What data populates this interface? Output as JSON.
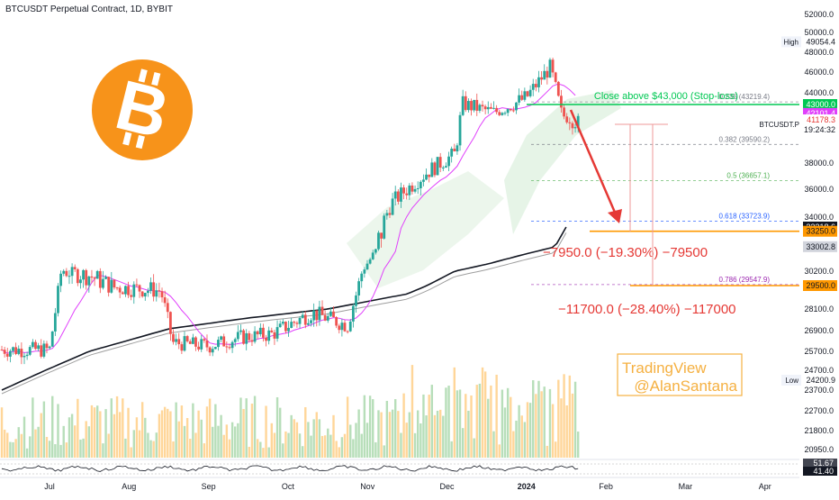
{
  "header": {
    "title": "BTCUSDT Perpetual Contract, 1D, BYBIT"
  },
  "chart_data": {
    "type": "candlestick",
    "symbol": "BTCUSDT.P",
    "ylim": [
      20000,
      53000
    ],
    "y_ticks": [
      {
        "value": 52000,
        "label": "52000.0"
      },
      {
        "value": 50000,
        "label": "50000.0"
      },
      {
        "value": 48000,
        "label": "48000.0"
      },
      {
        "value": 46000,
        "label": "46000.0"
      },
      {
        "value": 44000,
        "label": "44000.0"
      },
      {
        "value": 38000,
        "label": "38000.0"
      },
      {
        "value": 36000,
        "label": "36000.0"
      },
      {
        "value": 34000,
        "label": "34000.0"
      },
      {
        "value": 30200,
        "label": "30200.0"
      },
      {
        "value": 28100,
        "label": "28100.0"
      },
      {
        "value": 26900,
        "label": "26900.0"
      },
      {
        "value": 25700,
        "label": "25700.0"
      },
      {
        "value": 24700,
        "label": "24700.0"
      },
      {
        "value": 23700,
        "label": "23700.0"
      },
      {
        "value": 22700,
        "label": "22700.0"
      },
      {
        "value": 21800,
        "label": "21800.0"
      },
      {
        "value": 20950,
        "label": "20950.0"
      }
    ],
    "x_ticks": [
      {
        "label": "Jul",
        "month": 0
      },
      {
        "label": "Aug",
        "month": 1
      },
      {
        "label": "Sep",
        "month": 2
      },
      {
        "label": "Oct",
        "month": 3
      },
      {
        "label": "Nov",
        "month": 4
      },
      {
        "label": "Dec",
        "month": 5
      },
      {
        "label": "2024",
        "month": 6
      },
      {
        "label": "Feb",
        "month": 7
      },
      {
        "label": "Mar",
        "month": 8
      },
      {
        "label": "Apr",
        "month": 9
      }
    ],
    "price_tags": [
      {
        "value": 49054.4,
        "label": "49054.4",
        "tag": "High",
        "style": "plain"
      },
      {
        "value": 43000.0,
        "label": "43000.0",
        "style": "green"
      },
      {
        "value": 42101.4,
        "label": "42101.4",
        "style": "pink"
      },
      {
        "value": 41178.3,
        "label": "41178.3",
        "sub": "19:24:32",
        "symbol": "BTCUSDT.P",
        "style": "current"
      },
      {
        "value": 33318.6,
        "label": "33318.6",
        "style": "black"
      },
      {
        "value": 33250.0,
        "label": "33250.0",
        "style": "orange"
      },
      {
        "value": 33002.8,
        "label": "33002.8",
        "style": "gray"
      },
      {
        "value": 29500.0,
        "label": "29500.0",
        "style": "orange"
      },
      {
        "value": 24200.9,
        "label": "24200.9",
        "tag": "Low",
        "style": "plain"
      }
    ],
    "fib_levels": [
      {
        "ratio": "0.236",
        "value": 43219.4,
        "label": "0.236 (43219.4)",
        "color": "#787b86"
      },
      {
        "ratio": "0.382",
        "value": 39590.2,
        "label": "0.382 (39590.2)",
        "color": "#787b86"
      },
      {
        "ratio": "0.5",
        "value": 36657.1,
        "label": "0.5 (36657.1)",
        "color": "#4caf50"
      },
      {
        "ratio": "0.618",
        "value": 33723.9,
        "label": "0.618 (33723.9)",
        "color": "#2962ff"
      },
      {
        "ratio": "0.786",
        "value": 29547.9,
        "label": "0.786 (29547.9)",
        "color": "#9c27b0"
      }
    ],
    "stop_loss": {
      "value": 43000,
      "label": "Close above $43,000 (Stop-loss)"
    },
    "targets": [
      {
        "value": 33250,
        "label": "−7950.0 (−19.30%) −79500"
      },
      {
        "value": 29500,
        "label": "−11700.0 (−28.40%) −117000"
      }
    ],
    "indicator_tags": [
      {
        "label": "51.67",
        "style": "dark"
      },
      {
        "label": "41.40",
        "style": "black"
      }
    ],
    "watermark": {
      "line1": "TradingView",
      "line2": "@AlanSantana"
    },
    "colors": {
      "up": "#26a69a",
      "down": "#ef5350",
      "green_line": "#00c853",
      "orange": "#ff9800",
      "ma_pink": "#e040fb",
      "ma_black": "#131722",
      "arrow": "#e53935"
    },
    "price_path_keypoints": [
      {
        "month": 0.0,
        "close": 25800
      },
      {
        "month": 0.15,
        "close": 30300
      },
      {
        "month": 0.5,
        "close": 30000
      },
      {
        "month": 0.8,
        "close": 29400
      },
      {
        "month": 1.4,
        "close": 29200
      },
      {
        "month": 1.55,
        "close": 26200
      },
      {
        "month": 2.0,
        "close": 26000
      },
      {
        "month": 2.4,
        "close": 26500
      },
      {
        "month": 2.8,
        "close": 26700
      },
      {
        "month": 3.3,
        "close": 27900
      },
      {
        "month": 3.75,
        "close": 27200
      },
      {
        "month": 3.95,
        "close": 30500
      },
      {
        "month": 4.3,
        "close": 35000
      },
      {
        "month": 4.75,
        "close": 37300
      },
      {
        "month": 5.1,
        "close": 38800
      },
      {
        "month": 5.2,
        "close": 43000
      },
      {
        "month": 5.6,
        "close": 42200
      },
      {
        "month": 6.0,
        "close": 43600
      },
      {
        "month": 6.3,
        "close": 46500
      },
      {
        "month": 6.45,
        "close": 41800
      },
      {
        "month": 6.65,
        "close": 41178
      }
    ],
    "ma_long_keypoints": [
      {
        "month": -0.6,
        "value": 23700
      },
      {
        "month": 0.5,
        "value": 25700
      },
      {
        "month": 1.5,
        "value": 27000
      },
      {
        "month": 2.5,
        "value": 27600
      },
      {
        "month": 3.5,
        "value": 28100
      },
      {
        "month": 4.5,
        "value": 29000
      },
      {
        "month": 5.5,
        "value": 31000
      },
      {
        "month": 6.0,
        "value": 32200
      },
      {
        "month": 6.5,
        "value": 33318
      }
    ]
  }
}
